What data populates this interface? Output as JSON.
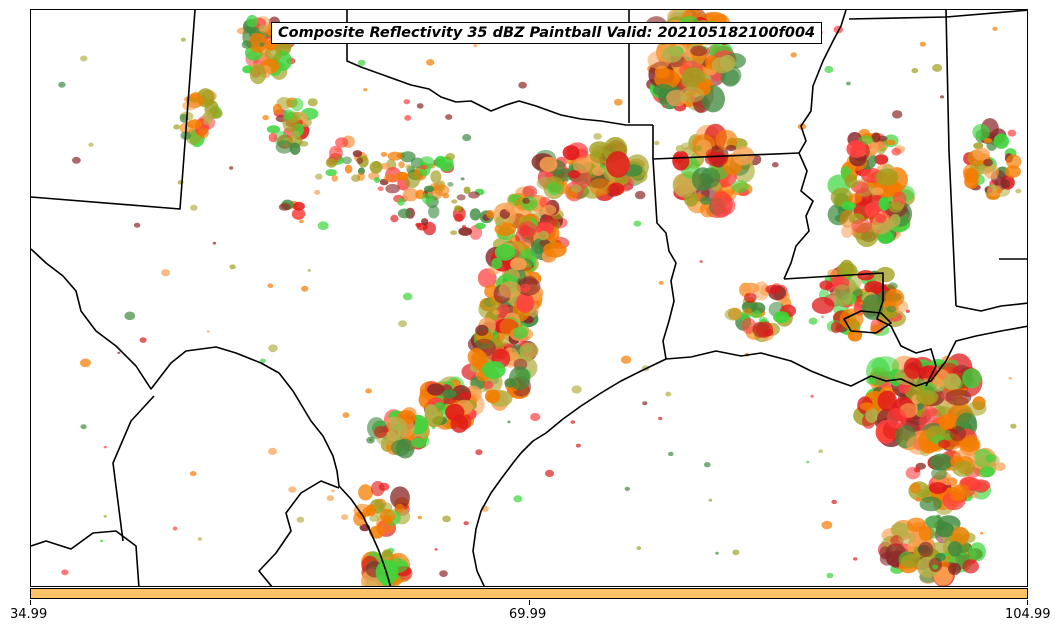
{
  "title": "Composite Reflectivity 35 dBZ Paintball Valid: 202105182100f004",
  "colorbar": {
    "color": "#ffc266",
    "ticks": [
      "34.99",
      "69.99",
      "104.99"
    ]
  },
  "palette": {
    "orange": "#f57c00",
    "light_orange": "#f8a050",
    "red": "#e01a1a",
    "bright_red": "#ff4040",
    "green": "#3cd63c",
    "dark_green": "#3f8a3f",
    "olive": "#a0a020",
    "khaki": "#b5b04a",
    "maroon": "#8a2828",
    "gray": "#404040"
  }
}
